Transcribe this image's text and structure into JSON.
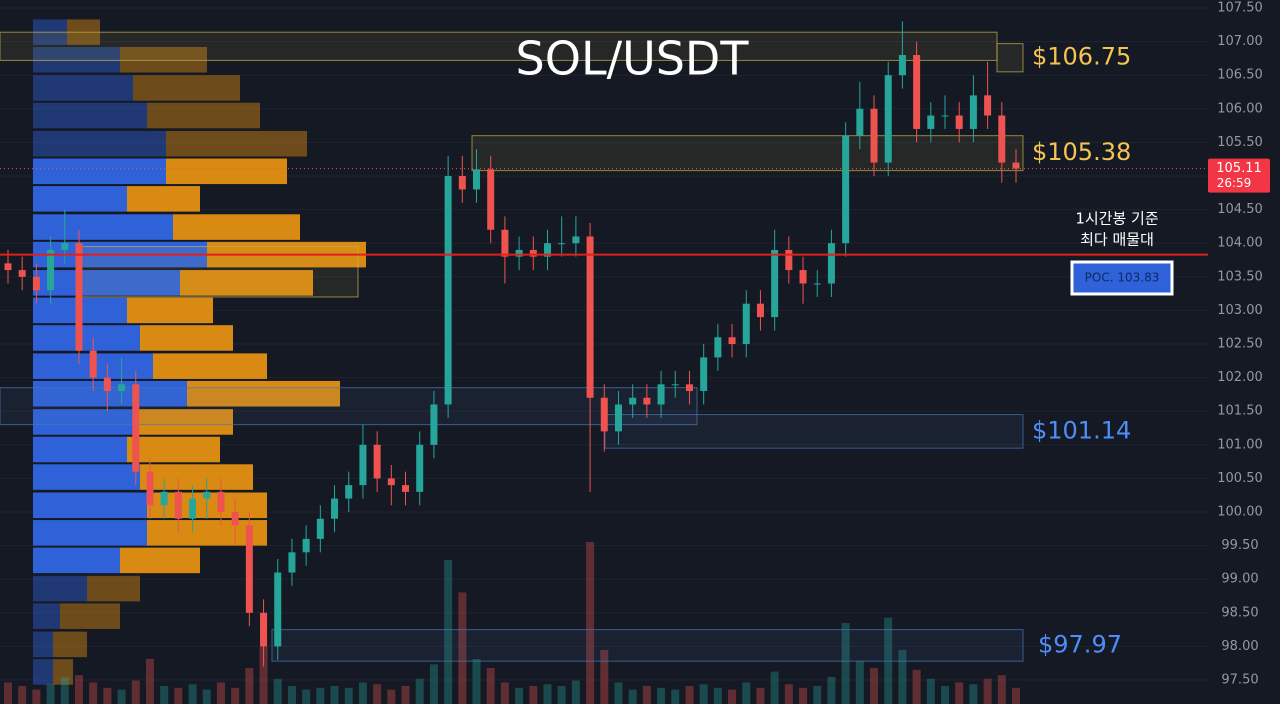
{
  "chart_data": {
    "type": "candlestick",
    "title": "SOL/USDT",
    "ylim": [
      97.5,
      107.5
    ],
    "yticks": [
      {
        "value": 97.5,
        "label": "97.50"
      },
      {
        "value": 98,
        "label": "98.00"
      },
      {
        "value": 98.5,
        "label": "98.50"
      },
      {
        "value": 99,
        "label": "99.00"
      },
      {
        "value": 99.5,
        "label": "99.50"
      },
      {
        "value": 100,
        "label": "100.00"
      },
      {
        "value": 100.5,
        "label": "100.50"
      },
      {
        "value": 101,
        "label": "101.00"
      },
      {
        "value": 101.5,
        "label": "101.50"
      },
      {
        "value": 102,
        "label": "102.00"
      },
      {
        "value": 102.5,
        "label": "102.50"
      },
      {
        "value": 103,
        "label": "103.00"
      },
      {
        "value": 103.5,
        "label": "103.50"
      },
      {
        "value": 104,
        "label": "104.00"
      },
      {
        "value": 104.5,
        "label": "104.50"
      },
      {
        "value": 105,
        "label": "105.00"
      },
      {
        "value": 105.5,
        "label": "105.50"
      },
      {
        "value": 106,
        "label": "106.00"
      },
      {
        "value": 106.5,
        "label": "106.50"
      },
      {
        "value": 107,
        "label": "107.00"
      },
      {
        "value": 107.5,
        "label": "107.50"
      }
    ],
    "up_color": "#26a69a",
    "down_color": "#ef5350",
    "open": [
      103.7,
      103.6,
      103.5,
      103.3,
      103.9,
      104.0,
      102.4,
      102.0,
      101.8,
      101.9,
      100.6,
      100.1,
      100.3,
      99.9,
      100.2,
      100.3,
      100.0,
      99.8,
      98.5,
      98.0,
      99.1,
      99.4,
      99.6,
      99.9,
      100.2,
      100.4,
      101.0,
      100.5,
      100.4,
      100.3,
      101.0,
      101.6,
      105.0,
      104.8,
      105.1,
      104.2,
      103.8,
      103.9,
      103.8,
      104.0,
      104.0,
      104.1,
      101.7,
      101.2,
      101.6,
      101.7,
      101.6,
      101.9,
      101.9,
      101.8,
      102.3,
      102.6,
      102.5,
      103.1,
      102.9,
      103.9,
      103.6,
      103.4,
      103.4,
      104.0,
      105.6,
      106.0,
      105.2,
      106.5,
      106.8,
      105.7,
      105.9,
      105.9,
      105.7,
      106.2,
      105.9,
      105.2
    ],
    "high": [
      103.9,
      103.8,
      103.7,
      104.1,
      104.5,
      104.2,
      102.6,
      102.2,
      102.3,
      102.1,
      100.8,
      100.5,
      100.5,
      100.4,
      100.5,
      100.5,
      100.2,
      100.0,
      98.7,
      99.3,
      99.6,
      99.8,
      100.1,
      100.4,
      100.6,
      101.3,
      101.2,
      100.7,
      100.6,
      101.2,
      101.8,
      105.3,
      105.3,
      105.4,
      105.3,
      104.4,
      104.1,
      104.1,
      104.2,
      104.4,
      104.4,
      104.3,
      101.9,
      101.8,
      101.9,
      101.9,
      102.1,
      102.1,
      102.1,
      102.5,
      102.8,
      102.8,
      103.3,
      103.3,
      104.2,
      104.1,
      103.8,
      103.6,
      104.2,
      105.8,
      106.4,
      106.2,
      106.7,
      107.3,
      107.0,
      106.1,
      106.2,
      106.1,
      106.5,
      106.7,
      106.1,
      105.4
    ],
    "low": [
      103.4,
      103.3,
      103.1,
      103.1,
      103.7,
      102.2,
      101.8,
      101.5,
      101.6,
      100.4,
      99.9,
      99.9,
      99.7,
      99.7,
      99.9,
      99.8,
      99.5,
      98.3,
      97.7,
      97.8,
      98.9,
      99.2,
      99.4,
      99.7,
      100.0,
      100.2,
      100.3,
      100.1,
      100.1,
      100.1,
      100.8,
      101.4,
      104.6,
      104.6,
      104.0,
      103.4,
      103.6,
      103.6,
      103.6,
      103.8,
      103.8,
      100.3,
      100.9,
      101.0,
      101.4,
      101.4,
      101.4,
      101.7,
      101.6,
      101.6,
      102.1,
      102.3,
      102.3,
      102.7,
      102.7,
      103.4,
      103.1,
      103.2,
      103.2,
      103.8,
      105.4,
      105.0,
      105.0,
      106.3,
      105.5,
      105.5,
      105.7,
      105.5,
      105.5,
      105.7,
      104.9,
      104.9
    ],
    "close": [
      103.6,
      103.5,
      103.3,
      103.9,
      104.0,
      102.4,
      102.0,
      101.8,
      101.9,
      100.6,
      100.1,
      100.3,
      99.9,
      100.2,
      100.3,
      100.0,
      99.8,
      98.5,
      98.0,
      99.1,
      99.4,
      99.6,
      99.9,
      100.2,
      100.4,
      101.0,
      100.5,
      100.4,
      100.3,
      101.0,
      101.6,
      105.0,
      104.8,
      105.1,
      104.2,
      103.8,
      103.9,
      103.8,
      104.0,
      104.0,
      104.1,
      101.7,
      101.2,
      101.6,
      101.7,
      101.6,
      101.9,
      101.9,
      101.8,
      102.3,
      102.6,
      102.5,
      103.1,
      102.9,
      103.9,
      103.6,
      103.4,
      103.4,
      104.0,
      105.6,
      106.0,
      105.2,
      106.5,
      106.8,
      105.7,
      105.9,
      105.9,
      105.7,
      106.2,
      105.9,
      105.2,
      105.11
    ],
    "volume": [
      1.2,
      1.0,
      0.8,
      1.1,
      1.5,
      1.6,
      1.2,
      0.9,
      0.8,
      1.3,
      2.5,
      1.0,
      0.9,
      1.1,
      0.8,
      1.2,
      0.9,
      2.0,
      3.2,
      1.4,
      1.0,
      0.8,
      0.9,
      1.0,
      0.9,
      1.2,
      1.1,
      0.8,
      1.0,
      1.4,
      2.2,
      8.0,
      6.2,
      2.5,
      2.0,
      1.2,
      0.9,
      1.0,
      1.1,
      1.0,
      1.3,
      9.0,
      3.0,
      1.2,
      0.8,
      1.0,
      0.9,
      0.8,
      1.0,
      1.1,
      0.9,
      0.8,
      1.2,
      0.9,
      1.8,
      1.1,
      0.9,
      1.0,
      1.5,
      4.5,
      2.4,
      2.0,
      4.8,
      3.0,
      1.9,
      1.4,
      1.0,
      1.2,
      1.1,
      1.4,
      1.6,
      0.9
    ],
    "volume_max": 10,
    "profile": {
      "levels": [
        107.14,
        106.73,
        106.31,
        105.9,
        105.48,
        105.07,
        104.66,
        104.24,
        103.83,
        103.41,
        103.0,
        102.59,
        102.17,
        101.76,
        101.34,
        100.93,
        100.52,
        100.1,
        99.69,
        99.28,
        98.86,
        98.45,
        98.03,
        97.62
      ],
      "buy": [
        34,
        87,
        100,
        114,
        133,
        133,
        94,
        140,
        174,
        147,
        94,
        107,
        120,
        154,
        100,
        94,
        107,
        114,
        114,
        87,
        54,
        27,
        20,
        20
      ],
      "sell": [
        33,
        87,
        107,
        113,
        141,
        121,
        73,
        127,
        159,
        133,
        86,
        93,
        114,
        153,
        100,
        93,
        113,
        120,
        120,
        80,
        53,
        60,
        34,
        20
      ],
      "buy_color": "#2f62d8",
      "sell_color": "#d98a12"
    },
    "zones": [
      {
        "low": 106.72,
        "high": 107.14,
        "color": "#c9b24a"
      },
      {
        "low": 106.55,
        "high": 106.97,
        "color": "#c9b24a",
        "label": "$106.75"
      },
      {
        "low": 105.08,
        "high": 105.6,
        "color": "#c9b24a",
        "label": "$105.38"
      },
      {
        "low": 103.2,
        "high": 103.95,
        "color": "#c9b24a"
      },
      {
        "low": 101.3,
        "high": 101.85,
        "color": "#4a78b0"
      },
      {
        "low": 100.95,
        "high": 101.45,
        "color": "#4a78b0",
        "label": "$101.14"
      },
      {
        "low": 97.78,
        "high": 98.25,
        "color": "#4a78b0",
        "label": "$97.97"
      }
    ],
    "poc": {
      "value": 103.83,
      "label": "POC. 103.83"
    },
    "annotation": [
      "1시간봉 기준",
      "최다 매물대"
    ],
    "last_price": {
      "value": 105.11,
      "label": "105.11"
    },
    "countdown": "26:59"
  }
}
